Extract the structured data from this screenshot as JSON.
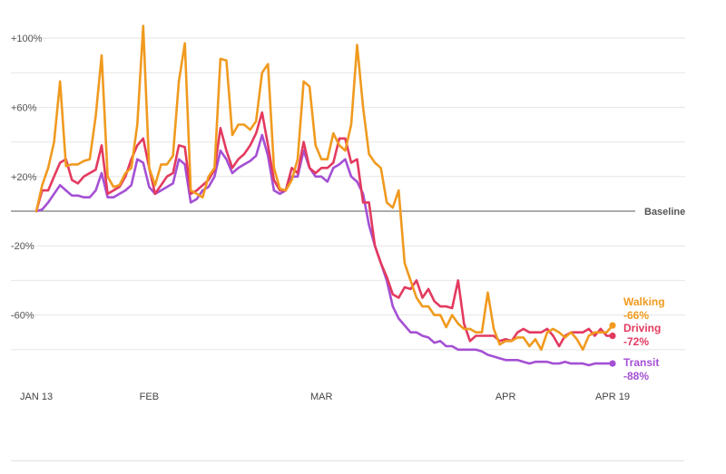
{
  "chart_data": {
    "type": "line",
    "title": "",
    "xlabel": "",
    "ylabel": "",
    "ylim": [
      -100,
      110
    ],
    "yticks": [
      {
        "value": 100,
        "label": "+100%"
      },
      {
        "value": 60,
        "label": "+60%"
      },
      {
        "value": 20,
        "label": "+20%"
      },
      {
        "value": -20,
        "label": "-20%"
      },
      {
        "value": -60,
        "label": "-60%"
      }
    ],
    "grid_values": [
      100,
      80,
      60,
      40,
      20,
      -20,
      -40,
      -60,
      -80
    ],
    "baseline": {
      "value": 0,
      "label": "Baseline"
    },
    "x_range": [
      0,
      97
    ],
    "xticks": [
      {
        "day": 0,
        "label": "JAN 13"
      },
      {
        "day": 19,
        "label": "FEB"
      },
      {
        "day": 48,
        "label": "MAR"
      },
      {
        "day": 79,
        "label": "APR"
      },
      {
        "day": 97,
        "label": "APR 19"
      }
    ],
    "series": [
      {
        "name": "Walking",
        "end_value_label": "-66%",
        "color": "#F09A1F",
        "values": [
          0,
          15,
          25,
          40,
          75,
          26,
          27,
          27,
          29,
          30,
          55,
          90,
          20,
          14,
          15,
          22,
          25,
          50,
          107,
          25,
          15,
          27,
          27,
          32,
          75,
          97,
          12,
          10,
          8,
          20,
          25,
          88,
          87,
          44,
          50,
          50,
          47,
          52,
          80,
          85,
          25,
          13,
          12,
          18,
          30,
          75,
          72,
          38,
          30,
          30,
          45,
          38,
          35,
          50,
          96,
          60,
          33,
          28,
          25,
          5,
          2,
          12,
          -30,
          -40,
          -50,
          -55,
          -55,
          -60,
          -60,
          -67,
          -60,
          -65,
          -68,
          -68,
          -70,
          -70,
          -47,
          -68,
          -77,
          -75,
          -75,
          -73,
          -73,
          -78,
          -74,
          -80,
          -70,
          -68,
          -70,
          -73,
          -70,
          -74,
          -80,
          -72,
          -70,
          -70,
          -70,
          -66
        ]
      },
      {
        "name": "Driving",
        "end_value_label": "-72%",
        "color": "#E33A5F",
        "values": [
          0,
          12,
          12,
          20,
          28,
          30,
          18,
          16,
          20,
          22,
          24,
          38,
          10,
          12,
          14,
          20,
          30,
          38,
          42,
          25,
          10,
          15,
          20,
          22,
          38,
          37,
          10,
          12,
          15,
          18,
          24,
          48,
          35,
          25,
          30,
          33,
          38,
          45,
          57,
          38,
          18,
          12,
          12,
          25,
          22,
          40,
          25,
          22,
          25,
          25,
          28,
          42,
          42,
          28,
          30,
          5,
          5,
          -20,
          -30,
          -38,
          -48,
          -50,
          -44,
          -45,
          -40,
          -50,
          -45,
          -52,
          -55,
          -55,
          -56,
          -40,
          -65,
          -75,
          -72,
          -72,
          -72,
          -72,
          -75,
          -74,
          -75,
          -70,
          -68,
          -70,
          -70,
          -70,
          -68,
          -72,
          -78,
          -72,
          -70,
          -70,
          -70,
          -68,
          -72,
          -68,
          -72,
          -72
        ]
      },
      {
        "name": "Transit",
        "end_value_label": "-88%",
        "color": "#A450D4",
        "values": [
          0,
          1,
          5,
          10,
          15,
          12,
          9,
          9,
          8,
          8,
          12,
          22,
          8,
          8,
          10,
          12,
          15,
          30,
          28,
          14,
          10,
          12,
          14,
          16,
          30,
          27,
          5,
          7,
          12,
          14,
          20,
          35,
          30,
          22,
          25,
          27,
          29,
          32,
          44,
          32,
          12,
          10,
          12,
          20,
          20,
          35,
          25,
          20,
          20,
          17,
          25,
          27,
          30,
          20,
          17,
          10,
          -8,
          -20,
          -30,
          -40,
          -55,
          -62,
          -66,
          -70,
          -70,
          -72,
          -73,
          -76,
          -75,
          -78,
          -78,
          -80,
          -80,
          -80,
          -80,
          -81,
          -83,
          -84,
          -85,
          -86,
          -86,
          -86,
          -87,
          -88,
          -87,
          -87,
          -87,
          -88,
          -88,
          -87,
          -88,
          -88,
          -88,
          -89,
          -88,
          -88,
          -88,
          -88
        ]
      }
    ]
  }
}
